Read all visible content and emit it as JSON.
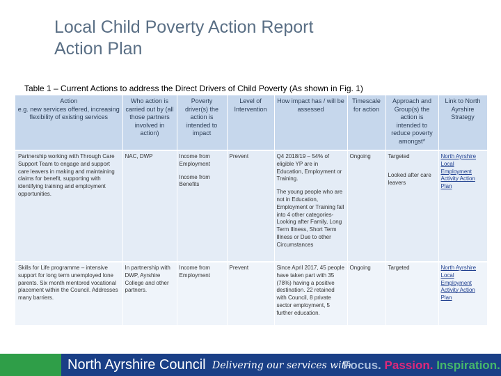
{
  "slide": {
    "title_line1": "Local Child Poverty Action Report",
    "title_line2": "Action Plan",
    "table_caption": "Table 1 – Current Actions to address the Direct Drivers of Child Poverty (As shown in Fig. 1)"
  },
  "table": {
    "headers": [
      "Action\ne.g. new services offered, increasing flexibility of existing services",
      "Who action is carried out by (all those partners involved in action)",
      "Poverty driver(s) the action is intended to impact",
      "Level of Intervention",
      "How impact has / will be assessed",
      "Timescale for action",
      "Approach and Group(s) the action is intended to reduce poverty amongst*",
      "Link to North Ayrshire Strategy"
    ],
    "rows": [
      {
        "action": "Partnership working with Through Care Support Team to engage and support care leavers in making and maintaining claims for benefit, supporting with identifying training and employment opportunities.",
        "who": "NAC, DWP",
        "driver_1": "Income from Employment",
        "driver_2": "Income from Benefits",
        "level": "Prevent",
        "impact_1": "Q4 2018/19 – 54% of eligible YP are in Education, Employment or Training.",
        "impact_2": "The young people who are not in Education, Employment or Training fall into 4 other categories- Looking after Family, Long Term Illness, Short Term Illness or Due to other Circumstances",
        "timescale": "Ongoing",
        "approach_1": "Targeted",
        "approach_2": "Looked after care leavers",
        "strategy": "North Ayrshire Local Employment Activity Action Plan"
      },
      {
        "action": "Skills for Life programme – intensive support for long term unemployed lone parents. Six month mentored vocational placement within the Council. Addresses many barriers.",
        "who": "In partnership with DWP, Ayrshire College and other partners.",
        "driver_1": "Income from Employment",
        "level": "Prevent",
        "impact_1": "Since April 2017, 45 people have taken part with 35 (78%) having a positive destination. 22 retained with Council, 8 private sector employment, 5 further education.",
        "timescale": "Ongoing",
        "approach_1": "Targeted",
        "strategy": "North Ayrshire Local Employment Activity Action Plan"
      }
    ]
  },
  "footer": {
    "council": "North Ayrshire Council",
    "tagline": "Delivering our services with",
    "focus": "Focus.",
    "passion": "Passion.",
    "inspiration": "Inspiration."
  },
  "colors": {
    "title": "#5a6f85",
    "header_bg": "#c6d7ec",
    "row_bg": "#e4ecf6",
    "footer_bg": "#1a3f86",
    "footer_green": "#2f9e48",
    "passion": "#e0287a",
    "inspiration": "#46b86a"
  }
}
